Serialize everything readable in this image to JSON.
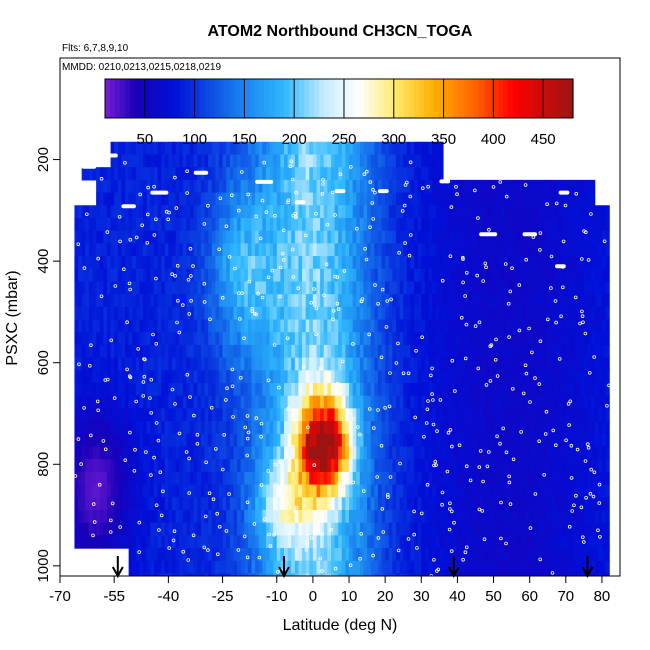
{
  "chart_data": {
    "type": "heatmap",
    "title": "ATOM2 Northbound CH3CN_TOGA",
    "subtitle": "Flts: 6,7,8,9,10",
    "annotation": "MMDD: 0210,0213,0215,0218,0219",
    "xlabel": "Latitude (deg N)",
    "ylabel": "PSXC (mbar)",
    "xlim": [
      -70,
      85
    ],
    "ylim": [
      1020,
      0
    ],
    "x_ticks": [
      -70,
      -55,
      -40,
      -25,
      -10,
      0,
      10,
      20,
      30,
      40,
      50,
      60,
      70,
      80
    ],
    "y_ticks": [
      200,
      400,
      600,
      800,
      1000
    ],
    "colorbar": {
      "ticks": [
        50,
        100,
        150,
        200,
        250,
        300,
        350,
        400,
        450
      ],
      "range": [
        10,
        480
      ],
      "stops": [
        {
          "v": 10,
          "c": "#7a1fd6"
        },
        {
          "v": 40,
          "c": "#1a00b8"
        },
        {
          "v": 80,
          "c": "#0010d8"
        },
        {
          "v": 150,
          "c": "#1a86f0"
        },
        {
          "v": 190,
          "c": "#30b8ff"
        },
        {
          "v": 230,
          "c": "#c4ecff"
        },
        {
          "v": 265,
          "c": "#ffffff"
        },
        {
          "v": 300,
          "c": "#ffec70"
        },
        {
          "v": 340,
          "c": "#ffb000"
        },
        {
          "v": 380,
          "c": "#ff6600"
        },
        {
          "v": 420,
          "c": "#ff0000"
        },
        {
          "v": 480,
          "c": "#9a1414"
        }
      ]
    },
    "grid": false,
    "flight_arrow_latitudes": [
      -54,
      -8,
      39,
      76
    ]
  }
}
